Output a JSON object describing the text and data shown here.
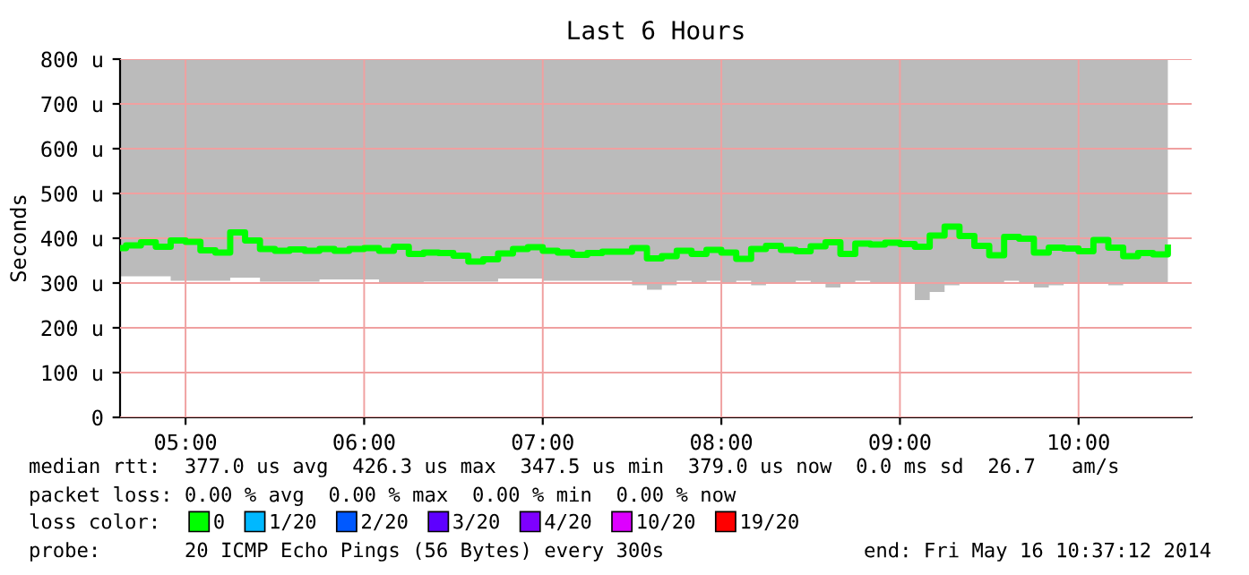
{
  "chart_data": {
    "type": "step",
    "title": "Last 6 Hours",
    "ylabel": "Seconds",
    "x": [
      4.6333,
      4.6667,
      4.75,
      4.8333,
      4.9167,
      5,
      5.0833,
      5.1667,
      5.25,
      5.3333,
      5.4167,
      5.5,
      5.5833,
      5.6667,
      5.75,
      5.8333,
      5.9167,
      6,
      6.0833,
      6.1667,
      6.25,
      6.3333,
      6.4167,
      6.5,
      6.5833,
      6.6667,
      6.75,
      6.8333,
      6.9167,
      7,
      7.0833,
      7.1667,
      7.25,
      7.3333,
      7.4167,
      7.5,
      7.5833,
      7.6667,
      7.75,
      7.8333,
      7.9167,
      8,
      8.0833,
      8.1667,
      8.25,
      8.3333,
      8.4167,
      8.5,
      8.5833,
      8.6667,
      8.75,
      8.8333,
      8.9167,
      9,
      9.0833,
      9.1667,
      9.25,
      9.3333,
      9.4167,
      9.5,
      9.5833,
      9.6667,
      9.75,
      9.8333,
      9.9167,
      10,
      10.0833,
      10.1667,
      10.25,
      10.3333,
      10.4167,
      10.5
    ],
    "series": [
      {
        "name": "0",
        "color": "#00ff00",
        "values": [
          378,
          384,
          391,
          381,
          395,
          392,
          373,
          368,
          413,
          395,
          376,
          372,
          375,
          372,
          376,
          372,
          376,
          378,
          372,
          381,
          365,
          368,
          367,
          361,
          348,
          353,
          366,
          376,
          380,
          372,
          368,
          363,
          367,
          370,
          370,
          378,
          355,
          360,
          372,
          365,
          374,
          368,
          354,
          376,
          383,
          374,
          371,
          382,
          391,
          365,
          388,
          386,
          390,
          387,
          381,
          406,
          426,
          405,
          383,
          362,
          403,
          399,
          368,
          379,
          377,
          371,
          396,
          379,
          360,
          367,
          364,
          379
        ],
        "lower": [
          315,
          315,
          315,
          315,
          305,
          305,
          305,
          305,
          312,
          312,
          303,
          303,
          303,
          303,
          308,
          308,
          308,
          308,
          302,
          302,
          302,
          303,
          303,
          303,
          303,
          303,
          310,
          310,
          310,
          305,
          305,
          305,
          305,
          305,
          305,
          295,
          285,
          295,
          305,
          300,
          305,
          300,
          305,
          295,
          300,
          300,
          305,
          300,
          290,
          300,
          305,
          300,
          300,
          300,
          262,
          280,
          295,
          300,
          300,
          300,
          305,
          300,
          290,
          295,
          300,
          300,
          300,
          295,
          300,
          300,
          300,
          290
        ],
        "upper": [
          800,
          800,
          800,
          800,
          800,
          800,
          800,
          800,
          800,
          800,
          800,
          800,
          800,
          800,
          800,
          800,
          800,
          800,
          800,
          800,
          800,
          800,
          800,
          800,
          800,
          800,
          800,
          800,
          800,
          800,
          800,
          800,
          800,
          800,
          800,
          800,
          800,
          800,
          800,
          800,
          800,
          800,
          800,
          800,
          800,
          800,
          800,
          800,
          800,
          800,
          800,
          800,
          800,
          800,
          800,
          800,
          800,
          800,
          800,
          800,
          800,
          800,
          800,
          800,
          800,
          800,
          800,
          800,
          800,
          800,
          800,
          800
        ]
      },
      {
        "name": "1/20",
        "color": "#00b8ff",
        "values": [
          null,
          null,
          null,
          null,
          null,
          null,
          null,
          null,
          null,
          null,
          null,
          null,
          null,
          null,
          null,
          null,
          null,
          null,
          null,
          null,
          null,
          null,
          null,
          null,
          null,
          null,
          null,
          null,
          null,
          null,
          null,
          null,
          null,
          null,
          null,
          null,
          null,
          null,
          null,
          null,
          null,
          null,
          null,
          null,
          null,
          null,
          null,
          null,
          null,
          null,
          null,
          null,
          null,
          null,
          null,
          null,
          null,
          null,
          null,
          null,
          null,
          null,
          null,
          null,
          null,
          null,
          null,
          null,
          null,
          null,
          null,
          null
        ]
      },
      {
        "name": "2/20",
        "color": "#0059ff",
        "values": [
          null,
          null,
          null,
          null,
          null,
          null,
          null,
          null,
          null,
          null,
          null,
          null,
          null,
          null,
          null,
          null,
          null,
          null,
          null,
          null,
          null,
          null,
          null,
          null,
          null,
          null,
          null,
          null,
          null,
          null,
          null,
          null,
          null,
          null,
          null,
          null,
          null,
          null,
          null,
          null,
          null,
          null,
          null,
          null,
          null,
          null,
          null,
          null,
          null,
          null,
          null,
          null,
          null,
          null,
          null,
          null,
          null,
          null,
          null,
          null,
          null,
          null,
          null,
          null,
          null,
          null,
          null,
          null,
          null,
          null,
          null,
          null
        ]
      },
      {
        "name": "3/20",
        "color": "#5e00ff",
        "values": [
          null,
          null,
          null,
          null,
          null,
          null,
          null,
          null,
          null,
          null,
          null,
          null,
          null,
          null,
          null,
          null,
          null,
          null,
          null,
          null,
          null,
          null,
          null,
          null,
          null,
          null,
          null,
          null,
          null,
          null,
          null,
          null,
          null,
          null,
          null,
          null,
          null,
          null,
          null,
          null,
          null,
          null,
          null,
          null,
          null,
          null,
          null,
          null,
          null,
          null,
          null,
          null,
          null,
          null,
          null,
          null,
          null,
          null,
          null,
          null,
          null,
          null,
          null,
          null,
          null,
          null,
          null,
          null,
          null,
          null,
          null,
          null
        ]
      },
      {
        "name": "4/20",
        "color": "#7e00ff",
        "values": [
          null,
          null,
          null,
          null,
          null,
          null,
          null,
          null,
          null,
          null,
          null,
          null,
          null,
          null,
          null,
          null,
          null,
          null,
          null,
          null,
          null,
          null,
          null,
          null,
          null,
          null,
          null,
          null,
          null,
          null,
          null,
          null,
          null,
          null,
          null,
          null,
          null,
          null,
          null,
          null,
          null,
          null,
          null,
          null,
          null,
          null,
          null,
          null,
          null,
          null,
          null,
          null,
          null,
          null,
          null,
          null,
          null,
          null,
          null,
          null,
          null,
          null,
          null,
          null,
          null,
          null,
          null,
          null,
          null,
          null,
          null,
          null
        ]
      },
      {
        "name": "10/20",
        "color": "#dd00ff",
        "values": [
          null,
          null,
          null,
          null,
          null,
          null,
          null,
          null,
          null,
          null,
          null,
          null,
          null,
          null,
          null,
          null,
          null,
          null,
          null,
          null,
          null,
          null,
          null,
          null,
          null,
          null,
          null,
          null,
          null,
          null,
          null,
          null,
          null,
          null,
          null,
          null,
          null,
          null,
          null,
          null,
          null,
          null,
          null,
          null,
          null,
          null,
          null,
          null,
          null,
          null,
          null,
          null,
          null,
          null,
          null,
          null,
          null,
          null,
          null,
          null,
          null,
          null,
          null,
          null,
          null,
          null,
          null,
          null,
          null,
          null,
          null,
          null
        ]
      },
      {
        "name": "19/20",
        "color": "#ff0000",
        "values": [
          null,
          null,
          null,
          null,
          null,
          null,
          null,
          null,
          null,
          null,
          null,
          null,
          null,
          null,
          null,
          null,
          null,
          null,
          null,
          null,
          null,
          null,
          null,
          null,
          null,
          null,
          null,
          null,
          null,
          null,
          null,
          null,
          null,
          null,
          null,
          null,
          null,
          null,
          null,
          null,
          null,
          null,
          null,
          null,
          null,
          null,
          null,
          null,
          null,
          null,
          null,
          null,
          null,
          null,
          null,
          null,
          null,
          null,
          null,
          null,
          null,
          null,
          null,
          null,
          null,
          null,
          null,
          null,
          null,
          null,
          null,
          null
        ]
      }
    ],
    "legend": "bottom",
    "legend_title": "loss color:",
    "xlim": [
      4.6333,
      10.6333
    ],
    "xticks": [
      {
        "value": 5,
        "label": "05:00"
      },
      {
        "value": 6,
        "label": "06:00"
      },
      {
        "value": 7,
        "label": "07:00"
      },
      {
        "value": 8,
        "label": "08:00"
      },
      {
        "value": 9,
        "label": "09:00"
      },
      {
        "value": 10,
        "label": "10:00"
      }
    ],
    "ylim": [
      0,
      800
    ],
    "yticks": [
      0,
      {
        "value": 100,
        "label": "100 u"
      },
      {
        "value": 200,
        "label": "200 u"
      },
      {
        "value": 300,
        "label": "300 u"
      },
      {
        "value": 400,
        "label": "400 u"
      },
      {
        "value": 500,
        "label": "500 u"
      },
      {
        "value": 600,
        "label": "600 u"
      },
      {
        "value": 700,
        "label": "700 u"
      },
      {
        "value": 800,
        "label": "800 u"
      }
    ],
    "grid": true,
    "annotations": [
      "median rtt:  377.0 us avg  426.3 us max  347.5 us min  379.0 us now  0.0 ms sd  26.7   am/s",
      "packet loss: 0.00 % avg  0.00 % max  0.00 % min  0.00 % now",
      "probe:       20 ICMP Echo Pings (56 Bytes) every 300s",
      "end: Fri May 16 10:37:12 2014"
    ]
  }
}
